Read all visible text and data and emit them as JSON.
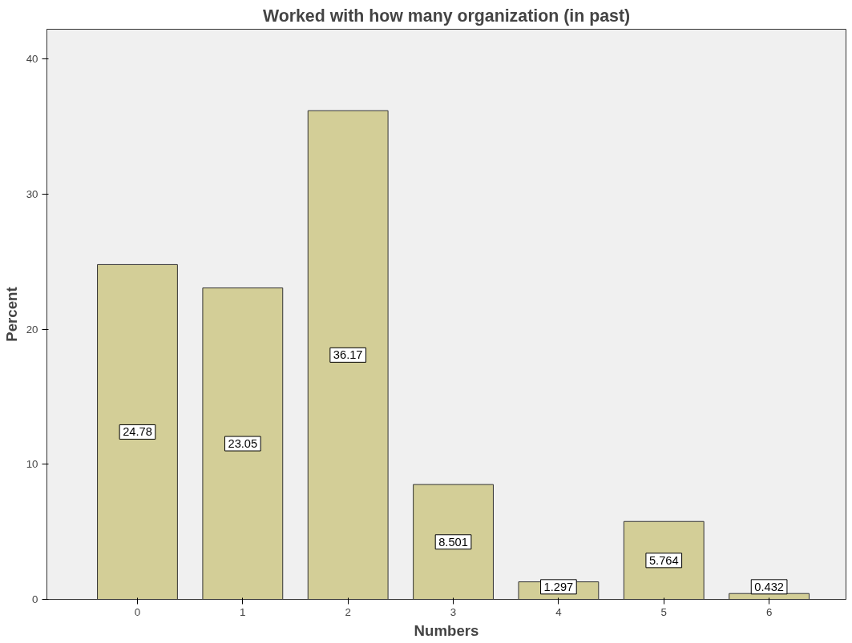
{
  "chart_data": {
    "type": "bar",
    "title": "Worked with how many organization (in past)",
    "xlabel": "Numbers",
    "ylabel": "Percent",
    "categories": [
      "0",
      "1",
      "2",
      "3",
      "4",
      "5",
      "6"
    ],
    "values": [
      24.78,
      23.05,
      36.17,
      8.501,
      1.297,
      5.764,
      0.432
    ],
    "color": "#d3ce97",
    "ylim": [
      0,
      42.2
    ],
    "yticks": [
      0,
      10,
      20,
      30,
      40
    ],
    "grid": false,
    "data_labels": true
  }
}
